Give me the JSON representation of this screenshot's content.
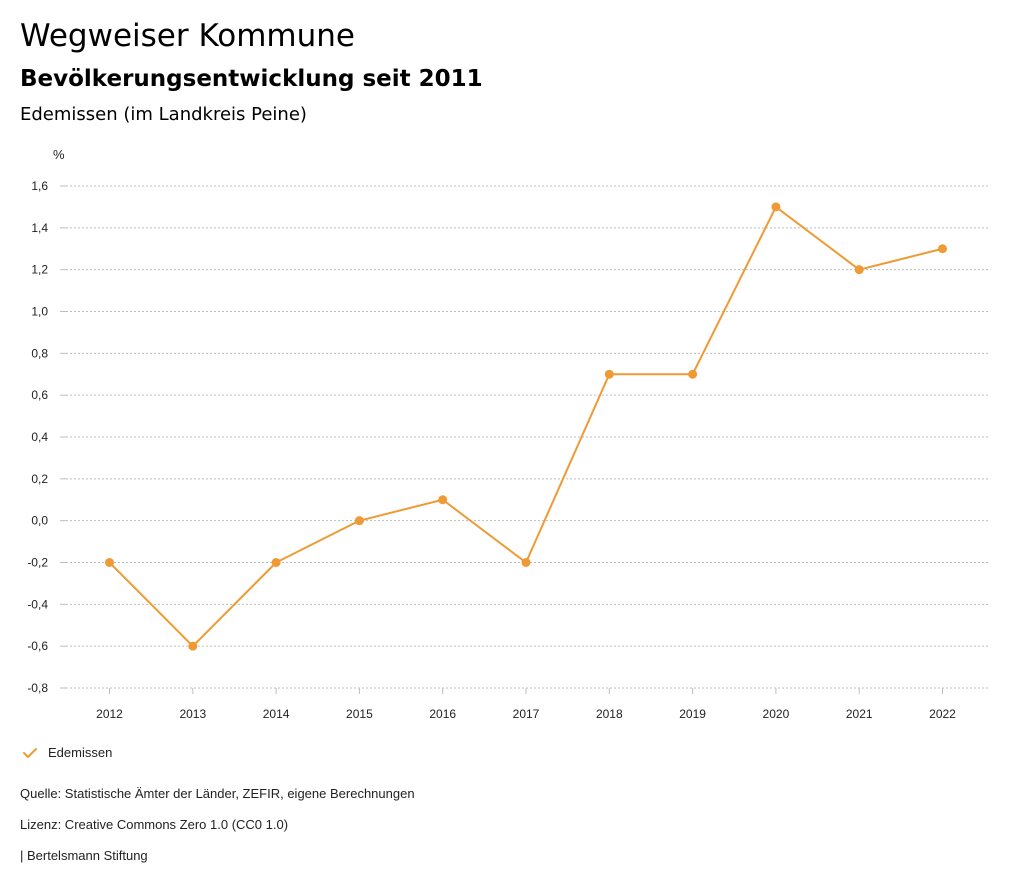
{
  "header": {
    "title": "Wegweiser Kommune",
    "subtitle": "Bevölkerungsentwicklung seit 2011",
    "region": "Edemissen (im Landkreis Peine)"
  },
  "chart_data": {
    "type": "line",
    "ylabel": "%",
    "xlabel": "",
    "categories": [
      "2012",
      "2013",
      "2014",
      "2015",
      "2016",
      "2017",
      "2018",
      "2019",
      "2020",
      "2021",
      "2022"
    ],
    "series": [
      {
        "name": "Edemissen",
        "color": "#ef9a34",
        "values": [
          -0.2,
          -0.6,
          -0.2,
          0.0,
          0.1,
          -0.2,
          0.7,
          0.7,
          1.5,
          1.2,
          1.3
        ]
      }
    ],
    "ylim": [
      -0.8,
      1.6
    ],
    "yticks": [
      -0.8,
      -0.6,
      -0.4,
      -0.2,
      0.0,
      0.2,
      0.4,
      0.6,
      0.8,
      1.0,
      1.2,
      1.4,
      1.6
    ],
    "ytick_labels": [
      "-0,8",
      "-0,6",
      "-0,4",
      "-0,2",
      "0,0",
      "0,2",
      "0,4",
      "0,6",
      "0,8",
      "1,0",
      "1,2",
      "1,4",
      "1,6"
    ],
    "grid": true,
    "legend": "bottom-left"
  },
  "legend": {
    "label": "Edemissen",
    "icon": "check-icon"
  },
  "footer": {
    "source": "Quelle: Statistische Ämter der Länder, ZEFIR, eigene Berechnungen",
    "license": "Lizenz: Creative Commons Zero 1.0 (CC0 1.0)",
    "publisher": "| Bertelsmann Stiftung"
  }
}
